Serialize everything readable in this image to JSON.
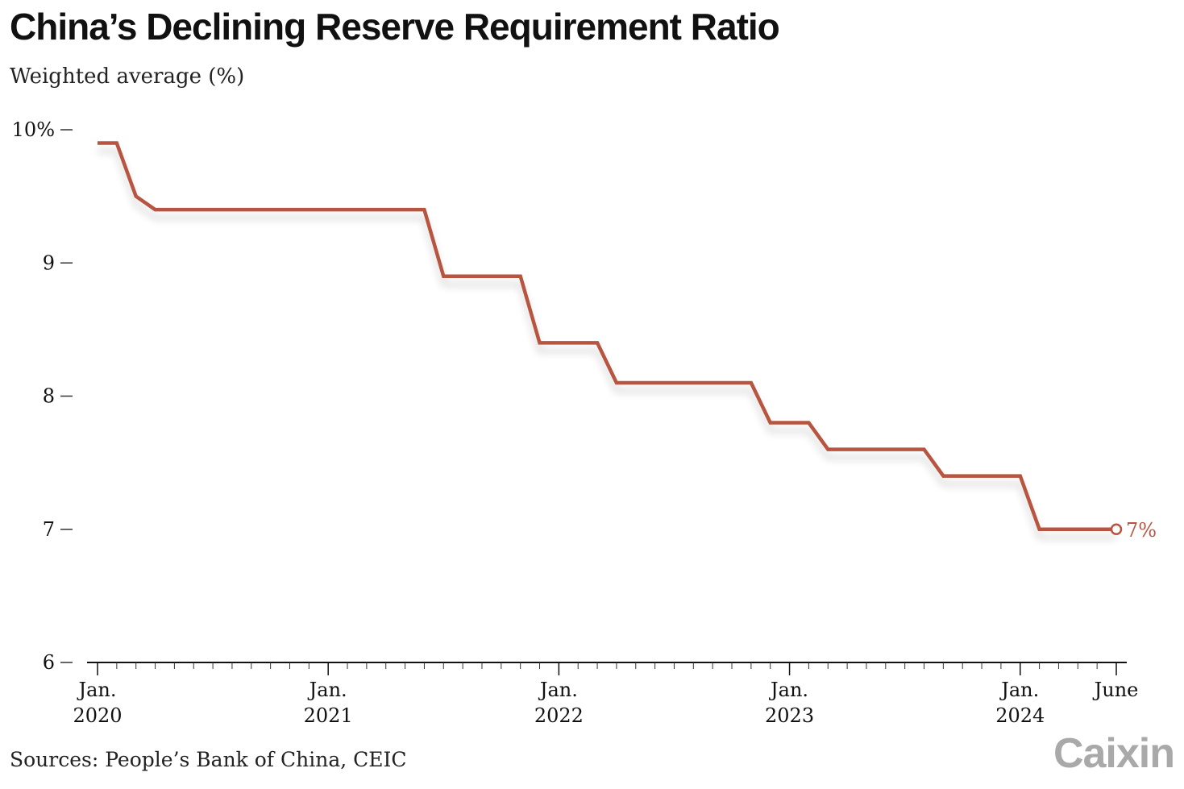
{
  "title": "China’s Declining Reserve Requirement Ratio",
  "subtitle": "Weighted average (%)",
  "source": "Sources: People’s Bank of China, CEIC",
  "brand": "Caixin",
  "colors": {
    "line": "#b85540",
    "text": "#111111",
    "brand": "#a9a9a9"
  },
  "chart_data": {
    "type": "line",
    "title": "China’s Declining Reserve Requirement Ratio",
    "ylabel": "Weighted average (%)",
    "xlabel": "",
    "ylim": [
      6,
      10
    ],
    "xlim": [
      "2020-01",
      "2024-06"
    ],
    "y_ticks": [
      {
        "value": 10,
        "label": "10%"
      },
      {
        "value": 9,
        "label": "9"
      },
      {
        "value": 8,
        "label": "8"
      },
      {
        "value": 7,
        "label": "7"
      },
      {
        "value": 6,
        "label": "6"
      }
    ],
    "x_ticks": [
      {
        "date": "2020-01",
        "line1": "Jan.",
        "line2": "2020"
      },
      {
        "date": "2021-01",
        "line1": "Jan.",
        "line2": "2021"
      },
      {
        "date": "2022-01",
        "line1": "Jan.",
        "line2": "2022"
      },
      {
        "date": "2023-01",
        "line1": "Jan.",
        "line2": "2023"
      },
      {
        "date": "2024-01",
        "line1": "Jan.",
        "line2": "2024"
      },
      {
        "date": "2024-06",
        "line1": "June",
        "line2": ""
      }
    ],
    "grid": false,
    "series": [
      {
        "points": [
          {
            "x": "2020-01",
            "y": 9.9
          },
          {
            "x": "2020-02",
            "y": 9.9
          },
          {
            "x": "2020-03",
            "y": 9.5
          },
          {
            "x": "2020-04",
            "y": 9.4
          },
          {
            "x": "2021-06",
            "y": 9.4
          },
          {
            "x": "2021-07",
            "y": 8.9
          },
          {
            "x": "2021-11",
            "y": 8.9
          },
          {
            "x": "2021-12",
            "y": 8.4
          },
          {
            "x": "2022-03",
            "y": 8.4
          },
          {
            "x": "2022-04",
            "y": 8.1
          },
          {
            "x": "2022-11",
            "y": 8.1
          },
          {
            "x": "2022-12",
            "y": 7.8
          },
          {
            "x": "2023-02",
            "y": 7.8
          },
          {
            "x": "2023-03",
            "y": 7.6
          },
          {
            "x": "2023-08",
            "y": 7.6
          },
          {
            "x": "2023-09",
            "y": 7.4
          },
          {
            "x": "2024-01",
            "y": 7.4
          },
          {
            "x": "2024-02",
            "y": 7.0
          },
          {
            "x": "2024-06",
            "y": 7.0
          }
        ]
      }
    ],
    "annotations": [
      {
        "x": "2024-06",
        "y": 7.0,
        "label": "7%"
      }
    ]
  }
}
